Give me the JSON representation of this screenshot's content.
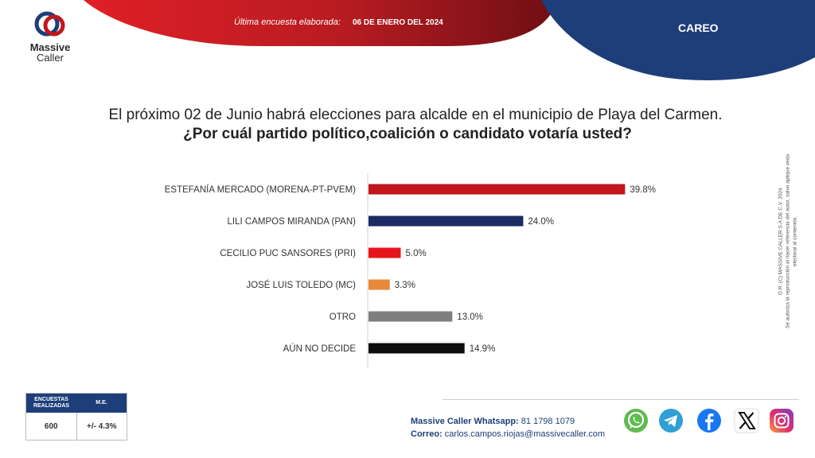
{
  "header": {
    "survey_label": "Última encuesta elaborada:",
    "survey_date": "06 DE ENERO DEL 2024",
    "section": "CAREO"
  },
  "logo": {
    "line1": "Massive",
    "line2": "Caller"
  },
  "question": {
    "line1": "El próximo 02 de Junio habrá elecciones para alcalde en el municipio de  Playa del Carmen.",
    "line2": "¿Por cuál partido político,coalición o candidato votaría usted?"
  },
  "chart_data": {
    "type": "bar",
    "orientation": "horizontal",
    "categories": [
      "ESTEFANÍA MERCADO (MORENA-PT-PVEM)",
      "LILI CAMPOS MIRANDA (PAN)",
      "CECILIO PUC SANSORES (PRI)",
      "JOSÉ LUIS TOLEDO (MC)",
      "OTRO",
      "AÚN NO DECIDE"
    ],
    "values": [
      39.8,
      24.0,
      5.0,
      3.3,
      13.0,
      14.9
    ],
    "value_labels": [
      "39.8%",
      "24.0%",
      "5.0%",
      "3.3%",
      "13.0%",
      "14.9%"
    ],
    "colors": [
      "#c0161c",
      "#1b2a63",
      "#e8141c",
      "#e8893a",
      "#7f7f7f",
      "#0d0d0d"
    ],
    "xlim": [
      0,
      45
    ],
    "grid": false,
    "legend": "none"
  },
  "side_note": {
    "line1": "D.R. (C) MASSIVE CALLER S.A DE C.V. 2024",
    "line2": "Se autoriza la reproducción al hacer referencia del autor, salvo aplique veda electoral al contenido."
  },
  "stats": {
    "col1_header": "ENCUESTAS REALIZADAS",
    "col2_header": "M.E.",
    "col1_value": "600",
    "col2_value": "+/- 4.3%"
  },
  "contact": {
    "whatsapp_label": "Massive Caller Whatsapp:",
    "whatsapp_value": "81 1798 1079",
    "email_label": "Correo:",
    "email_value": "carlos.campos.riojas@massivecaller.com"
  },
  "social_icons": [
    "whatsapp-icon",
    "telegram-icon",
    "facebook-icon",
    "x-icon",
    "instagram-icon"
  ]
}
